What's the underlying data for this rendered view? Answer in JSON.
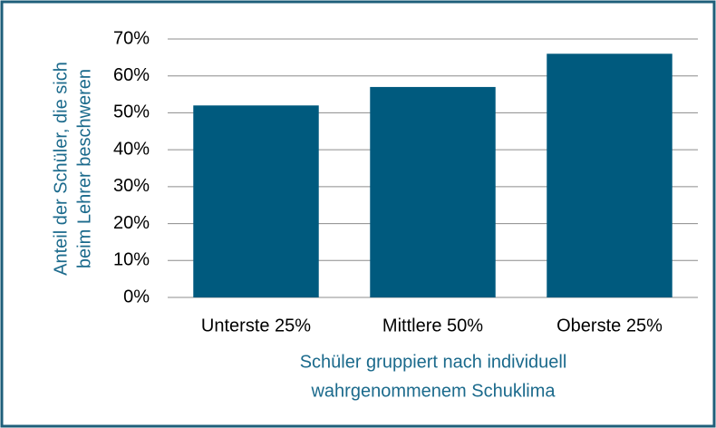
{
  "chart_data": {
    "type": "bar",
    "categories": [
      "Unterste 25%",
      "Mittlere 50%",
      "Oberste 25%"
    ],
    "values": [
      52,
      57,
      66
    ],
    "color": "#005a7e",
    "ylim": [
      0,
      70
    ],
    "yticks": [
      {
        "value": 0,
        "label": "0%"
      },
      {
        "value": 10,
        "label": "10%"
      },
      {
        "value": 20,
        "label": "20%"
      },
      {
        "value": 30,
        "label": "30%"
      },
      {
        "value": 40,
        "label": "40%"
      },
      {
        "value": 50,
        "label": "50%"
      },
      {
        "value": 60,
        "label": "60%"
      },
      {
        "value": 70,
        "label": "70%"
      }
    ],
    "ylabel": [
      "Anteil der Schüler, die sich",
      "beim Lehrer beschweren"
    ],
    "xlabel": [
      "Schüler gruppiert nach individuell",
      "wahrgenommenem Schuklima"
    ],
    "grid": true
  }
}
